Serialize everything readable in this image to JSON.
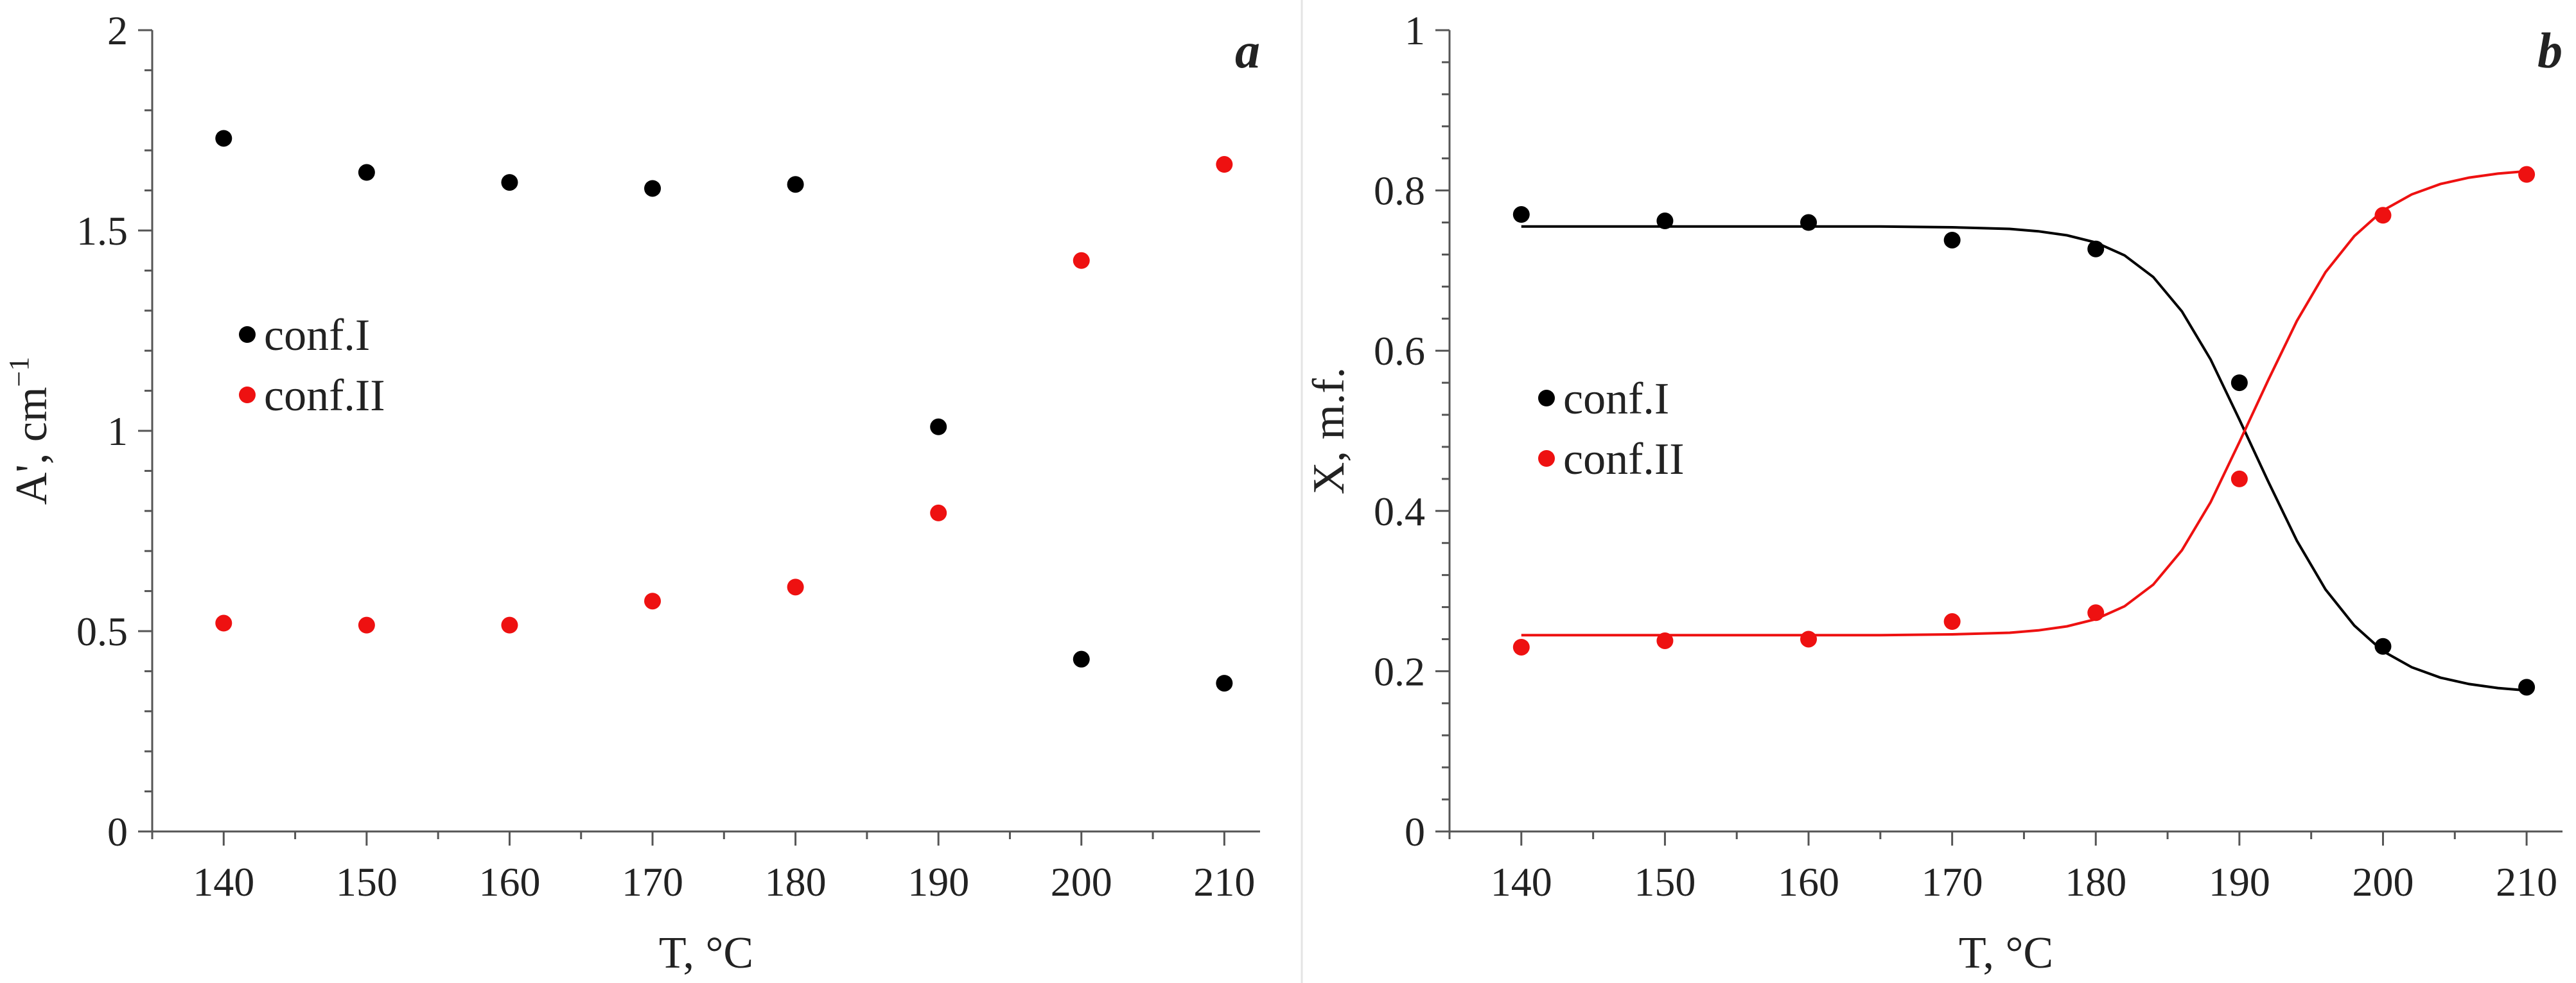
{
  "colors": {
    "conf_I": "#000000",
    "conf_II": "#ee1111",
    "axis": "#555555"
  },
  "chart_data": [
    {
      "type": "scatter",
      "panel": "a",
      "xlabel": "T, °C",
      "ylabel": "A', cm",
      "ylabel_sup": "−1",
      "xlim": [
        135,
        212.5
      ],
      "ylim": [
        0,
        2
      ],
      "xticks": [
        140,
        150,
        160,
        170,
        180,
        190,
        200,
        210
      ],
      "yticks": [
        0,
        0.5,
        1,
        1.5,
        2
      ],
      "ytick_labels": [
        "0",
        "0.5",
        "1",
        "1.5",
        "2"
      ],
      "legend": {
        "placement": "center-left",
        "entries": [
          "conf.I",
          "conf.II"
        ]
      },
      "series": [
        {
          "name": "conf.I",
          "x": [
            140,
            150,
            160,
            170,
            180,
            190,
            200,
            210
          ],
          "y": [
            1.73,
            1.645,
            1.62,
            1.605,
            1.615,
            1.01,
            0.43,
            0.37
          ]
        },
        {
          "name": "conf.II",
          "x": [
            140,
            150,
            160,
            170,
            180,
            190,
            200,
            210
          ],
          "y": [
            0.52,
            0.515,
            0.515,
            0.575,
            0.61,
            0.795,
            1.425,
            1.665
          ]
        }
      ]
    },
    {
      "type": "scatter",
      "panel": "b",
      "xlabel": "T, °C",
      "ylabel": "X, m.f.",
      "xlim": [
        135,
        212.5
      ],
      "ylim": [
        0,
        1
      ],
      "xticks": [
        140,
        150,
        160,
        170,
        180,
        190,
        200,
        210
      ],
      "yticks": [
        0,
        0.2,
        0.4,
        0.6,
        0.8,
        1
      ],
      "ytick_labels": [
        "0",
        "0.2",
        "0.4",
        "0.6",
        "0.8",
        "1"
      ],
      "legend": {
        "placement": "center-left",
        "entries": [
          "conf.I",
          "conf.II"
        ]
      },
      "series": [
        {
          "name": "conf.I",
          "x": [
            140,
            150,
            160,
            170,
            180,
            190,
            200,
            210
          ],
          "y": [
            0.77,
            0.762,
            0.76,
            0.738,
            0.727,
            0.56,
            0.231,
            0.18
          ]
        },
        {
          "name": "conf.II",
          "x": [
            140,
            150,
            160,
            170,
            180,
            190,
            200,
            210
          ],
          "y": [
            0.23,
            0.238,
            0.24,
            0.262,
            0.273,
            0.44,
            0.769,
            0.82
          ]
        }
      ],
      "fit_curves": [
        {
          "name": "conf.I fit",
          "x": [
            140,
            145,
            150,
            155,
            160,
            165,
            170,
            172,
            174,
            176,
            178,
            180,
            182,
            184,
            186,
            188,
            190,
            192,
            194,
            196,
            198,
            200,
            202,
            204,
            206,
            208,
            210
          ],
          "y": [
            0.755,
            0.755,
            0.755,
            0.755,
            0.755,
            0.755,
            0.754,
            0.753,
            0.752,
            0.749,
            0.744,
            0.735,
            0.719,
            0.692,
            0.649,
            0.589,
            0.514,
            0.437,
            0.363,
            0.302,
            0.257,
            0.225,
            0.205,
            0.192,
            0.184,
            0.179,
            0.176
          ]
        },
        {
          "name": "conf.II fit",
          "x": [
            140,
            145,
            150,
            155,
            160,
            165,
            170,
            172,
            174,
            176,
            178,
            180,
            182,
            184,
            186,
            188,
            190,
            192,
            194,
            196,
            198,
            200,
            202,
            204,
            206,
            208,
            210
          ],
          "y": [
            0.245,
            0.245,
            0.245,
            0.245,
            0.245,
            0.245,
            0.246,
            0.247,
            0.248,
            0.251,
            0.256,
            0.265,
            0.281,
            0.308,
            0.351,
            0.411,
            0.486,
            0.563,
            0.637,
            0.698,
            0.743,
            0.775,
            0.795,
            0.808,
            0.816,
            0.821,
            0.824
          ]
        }
      ]
    }
  ]
}
